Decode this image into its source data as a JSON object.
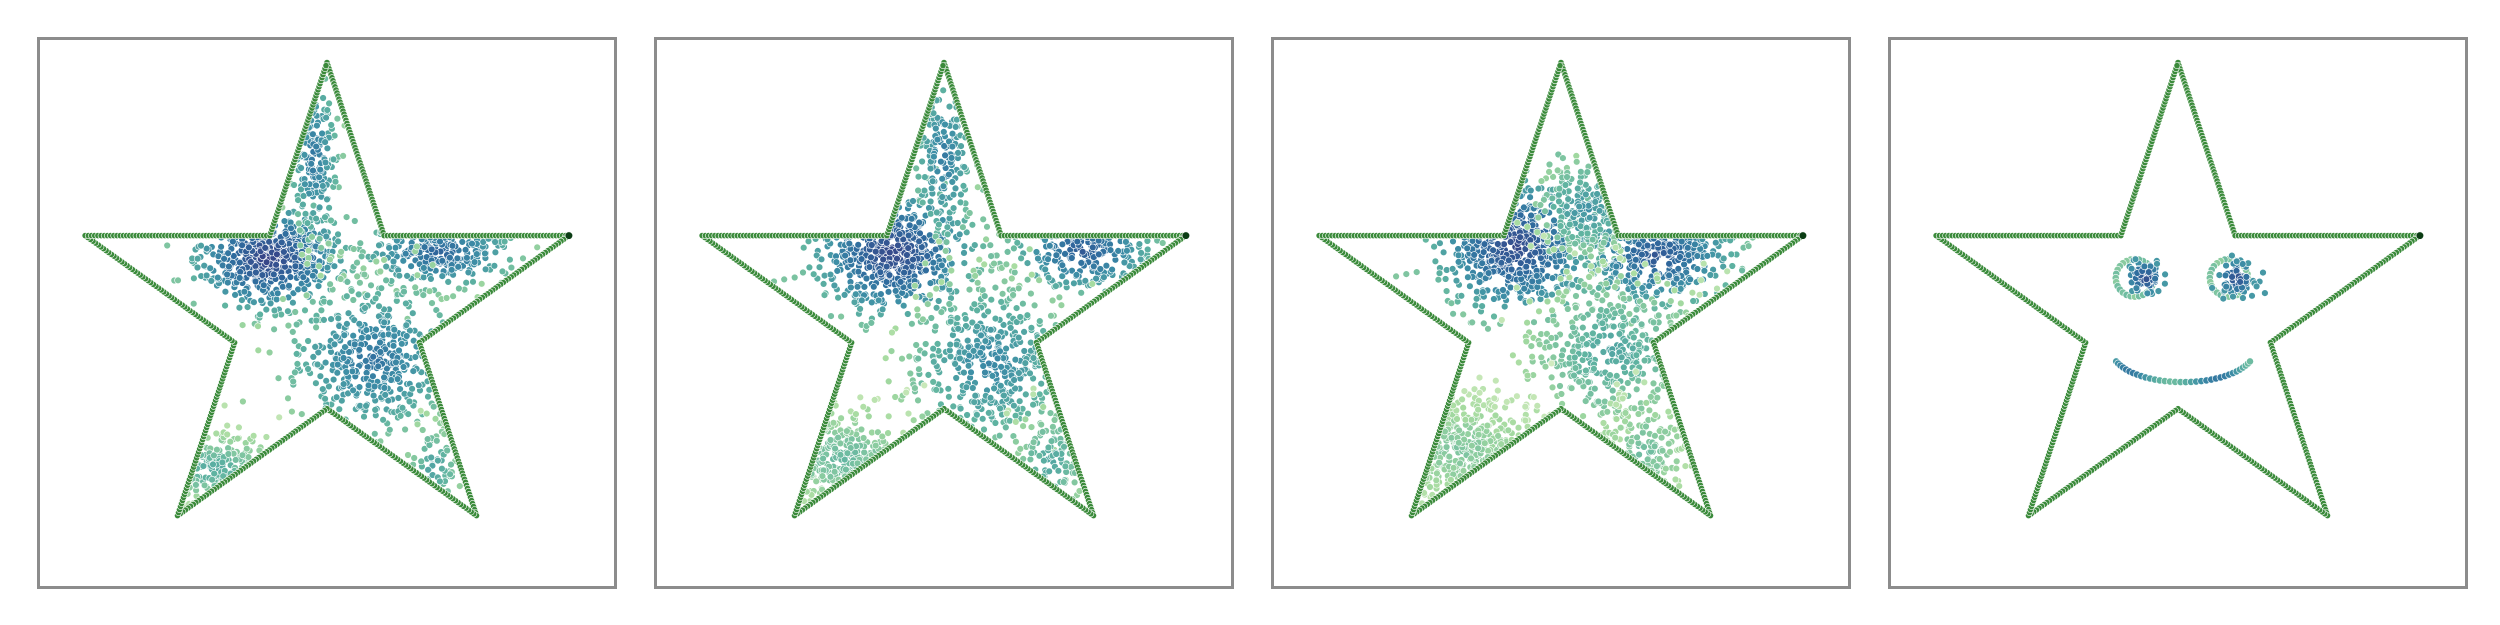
{
  "chart_data": [
    {
      "type": "scatter",
      "panel": 1,
      "xlim": [
        -1.05,
        1.05
      ],
      "ylim": [
        -1.05,
        1.05
      ],
      "grid": false,
      "colormap": [
        "#f0f7d6",
        "#a6dba0",
        "#5fb3a1",
        "#3e8fa6",
        "#2f6b9e",
        "#35508f",
        "#3b2f7a"
      ],
      "outline": {
        "color": "#3a8a3a",
        "vertices": [
          [
            0.0,
            1.0
          ],
          [
            0.2245,
            0.309
          ],
          [
            0.9511,
            0.309
          ],
          [
            0.3633,
            -0.118
          ],
          [
            0.5878,
            -0.809
          ],
          [
            0.0,
            -0.382
          ],
          [
            -0.5878,
            -0.809
          ],
          [
            -0.3633,
            -0.118
          ],
          [
            -0.9511,
            0.309
          ],
          [
            -0.2245,
            0.309
          ]
        ]
      },
      "clusters": [
        {
          "cx": -0.23,
          "cy": 0.22,
          "sx": 0.14,
          "sy": 0.1,
          "n": 520,
          "level": 0.92
        },
        {
          "cx": -0.05,
          "cy": 0.62,
          "sx": 0.05,
          "sy": 0.18,
          "n": 180,
          "level": 0.62
        },
        {
          "cx": 0.44,
          "cy": 0.24,
          "sx": 0.15,
          "sy": 0.07,
          "n": 260,
          "level": 0.72
        },
        {
          "cx": 0.18,
          "cy": -0.18,
          "sx": 0.17,
          "sy": 0.15,
          "n": 450,
          "level": 0.64
        },
        {
          "cx": -0.45,
          "cy": -0.62,
          "sx": 0.13,
          "sy": 0.07,
          "n": 140,
          "level": 0.38
        },
        {
          "cx": 0.42,
          "cy": -0.62,
          "sx": 0.06,
          "sy": 0.1,
          "n": 60,
          "level": 0.42
        }
      ]
    },
    {
      "type": "scatter",
      "panel": 2,
      "xlim": [
        -1.05,
        1.05
      ],
      "ylim": [
        -1.05,
        1.05
      ],
      "grid": false,
      "clusters": [
        {
          "cx": -0.2,
          "cy": 0.24,
          "sx": 0.15,
          "sy": 0.12,
          "n": 540,
          "level": 0.9
        },
        {
          "cx": 0.0,
          "cy": 0.62,
          "sx": 0.06,
          "sy": 0.18,
          "n": 160,
          "level": 0.6
        },
        {
          "cx": 0.55,
          "cy": 0.25,
          "sx": 0.13,
          "sy": 0.08,
          "n": 230,
          "level": 0.78
        },
        {
          "cx": 0.18,
          "cy": -0.2,
          "sx": 0.16,
          "sy": 0.16,
          "n": 420,
          "level": 0.56
        },
        {
          "cx": -0.4,
          "cy": -0.58,
          "sx": 0.16,
          "sy": 0.1,
          "n": 210,
          "level": 0.32
        },
        {
          "cx": 0.42,
          "cy": -0.6,
          "sx": 0.08,
          "sy": 0.12,
          "n": 90,
          "level": 0.4
        }
      ]
    },
    {
      "type": "scatter",
      "panel": 3,
      "xlim": [
        -1.05,
        1.05
      ],
      "ylim": [
        -1.05,
        1.05
      ],
      "grid": false,
      "clusters": [
        {
          "cx": -0.18,
          "cy": 0.27,
          "sx": 0.15,
          "sy": 0.13,
          "n": 560,
          "level": 0.88
        },
        {
          "cx": 0.38,
          "cy": 0.23,
          "sx": 0.15,
          "sy": 0.1,
          "n": 360,
          "level": 0.8
        },
        {
          "cx": 0.1,
          "cy": 0.42,
          "sx": 0.1,
          "sy": 0.09,
          "n": 180,
          "level": 0.5
        },
        {
          "cx": 0.2,
          "cy": -0.15,
          "sx": 0.18,
          "sy": 0.16,
          "n": 380,
          "level": 0.4
        },
        {
          "cx": -0.4,
          "cy": -0.55,
          "sx": 0.18,
          "sy": 0.12,
          "n": 300,
          "level": 0.26
        },
        {
          "cx": 0.33,
          "cy": -0.55,
          "sx": 0.1,
          "sy": 0.12,
          "n": 120,
          "level": 0.3
        }
      ]
    },
    {
      "type": "scatter",
      "panel": 4,
      "xlim": [
        -1.05,
        1.05
      ],
      "ylim": [
        -1.05,
        1.05
      ],
      "grid": false,
      "features": [
        {
          "kind": "ring",
          "cx": -0.17,
          "cy": 0.14,
          "r": 0.075,
          "n": 28,
          "level": 0.22
        },
        {
          "kind": "blob",
          "cx": -0.13,
          "cy": 0.14,
          "sx": 0.035,
          "sy": 0.035,
          "n": 80,
          "level": 0.86
        },
        {
          "kind": "ring",
          "cx": 0.2,
          "cy": 0.14,
          "r": 0.075,
          "n": 28,
          "level": 0.22
        },
        {
          "kind": "blob",
          "cx": 0.23,
          "cy": 0.14,
          "sx": 0.035,
          "sy": 0.035,
          "n": 80,
          "level": 0.86
        },
        {
          "kind": "arc",
          "cx": 0.02,
          "cy": -0.15,
          "r": 0.28,
          "t0": 200,
          "t1": 340,
          "n": 34,
          "level": 0.45
        }
      ]
    }
  ]
}
